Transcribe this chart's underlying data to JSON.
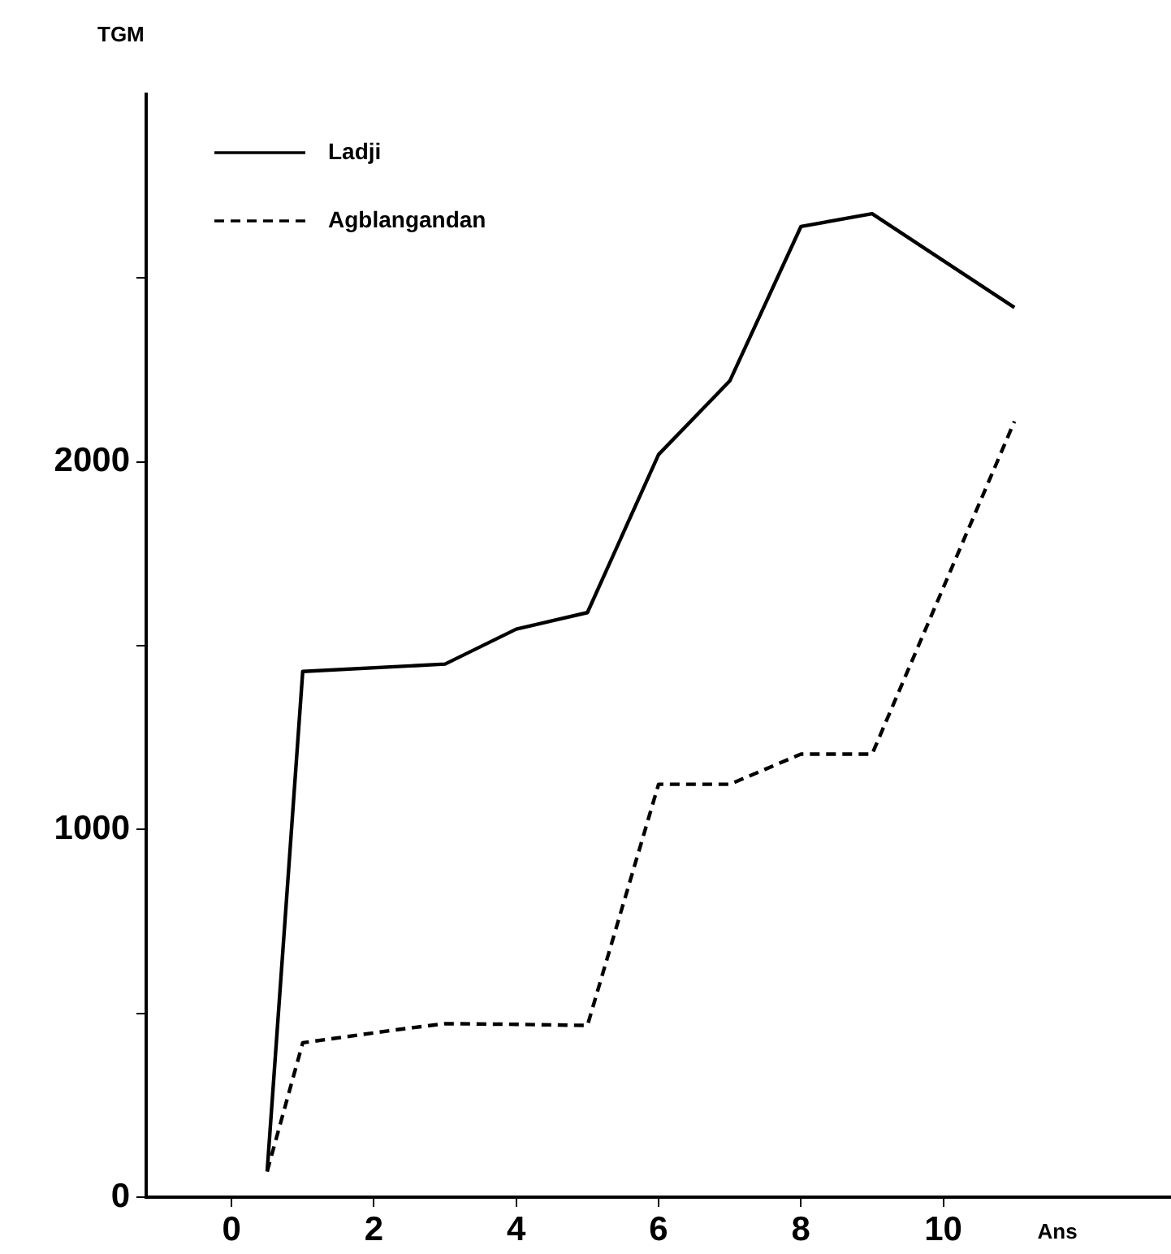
{
  "chart_data": {
    "type": "line",
    "xlabel": "Ans",
    "ylabel": "TGM",
    "legend": "top left",
    "marker": "none",
    "grid": false,
    "xlim": [
      -1.2,
      13.2
    ],
    "xticks": [
      0,
      2,
      4,
      6,
      8,
      10
    ],
    "ylim": [
      0,
      3000
    ],
    "yticks": [
      0,
      {
        "value": 500,
        "label": null
      },
      1000,
      {
        "value": 1500,
        "label": null
      },
      2000,
      {
        "value": 2500,
        "label": null
      }
    ],
    "series": [
      {
        "name": "Ladji",
        "color": "#000000",
        "line_style": "solid",
        "x": [
          0.5,
          1,
          3,
          4,
          5,
          6,
          7,
          8,
          9,
          11
        ],
        "values": [
          70,
          1430,
          1450,
          1545,
          1590,
          2020,
          2220,
          2640,
          2675,
          2420
        ]
      },
      {
        "name": "Agblangandan",
        "color": "#000000",
        "line_style": "dashed",
        "x": [
          0.5,
          1,
          2.3,
          3,
          4,
          5,
          6,
          7,
          8,
          9,
          11
        ],
        "values": [
          70,
          420,
          455,
          472,
          470,
          467,
          1123,
          1123,
          1205,
          1205,
          2110
        ]
      }
    ]
  }
}
